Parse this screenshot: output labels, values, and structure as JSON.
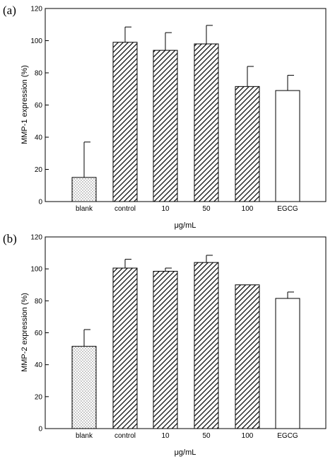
{
  "chart_data": [
    {
      "panel_label": "(a)",
      "type": "bar",
      "categories": [
        "blank",
        "control",
        "10",
        "50",
        "100",
        "EGCG"
      ],
      "values": [
        15,
        99,
        94,
        98,
        71.5,
        69
      ],
      "errors": [
        22,
        9.5,
        11,
        11.5,
        12.5,
        9.5
      ],
      "ylabel": "MMP-1 expression (%)",
      "xlabel": "μg/mL",
      "ylim": [
        0,
        120
      ],
      "yticks": [
        "0",
        "20",
        "40",
        "60",
        "80",
        "100",
        "120"
      ],
      "bar_fills": [
        "dots",
        "hatch",
        "hatch",
        "hatch",
        "hatch",
        "white"
      ]
    },
    {
      "panel_label": "(b)",
      "type": "bar",
      "categories": [
        "blank",
        "control",
        "10",
        "50",
        "100",
        "EGCG"
      ],
      "values": [
        51.5,
        100.5,
        98.5,
        104,
        90,
        81.5
      ],
      "errors": [
        10.5,
        5.5,
        2,
        4.5,
        0,
        4
      ],
      "ylabel": "MMP-2 expression (%)",
      "xlabel": "μg/mL",
      "ylim": [
        0,
        120
      ],
      "yticks": [
        "0",
        "20",
        "40",
        "60",
        "80",
        "100",
        "120"
      ],
      "bar_fills": [
        "dots",
        "hatch",
        "hatch",
        "hatch",
        "hatch",
        "white"
      ]
    }
  ]
}
